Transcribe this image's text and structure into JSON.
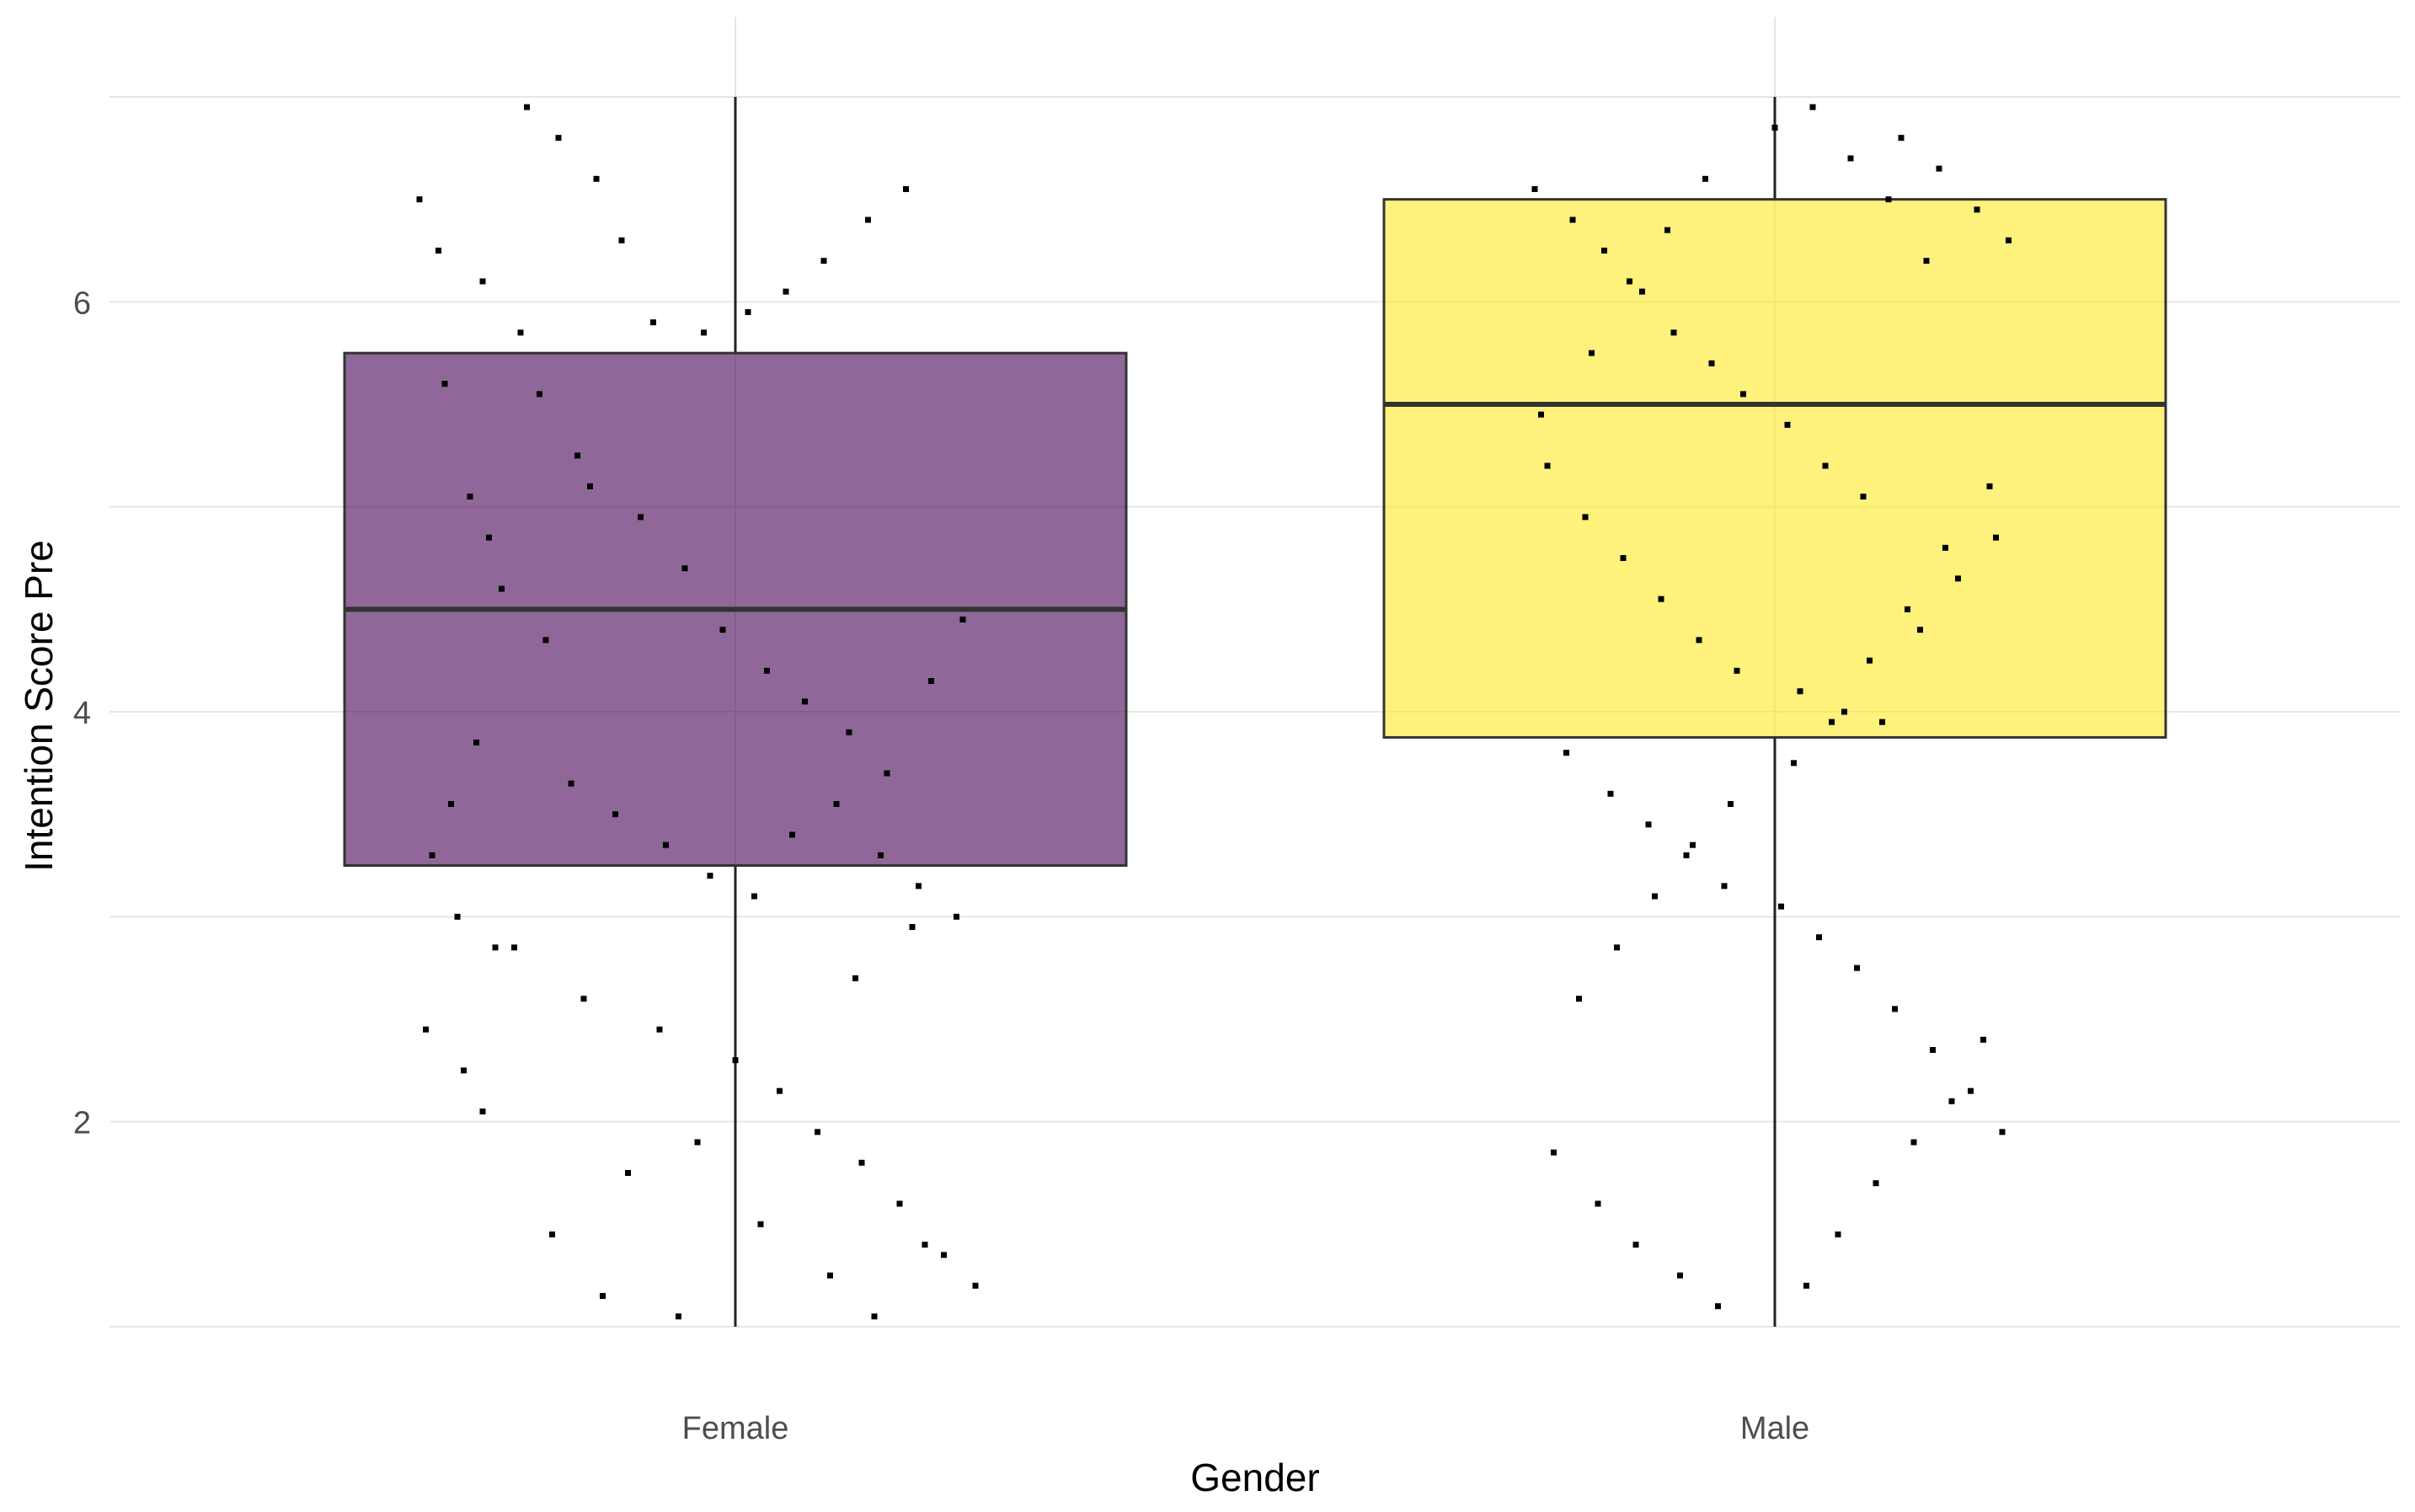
{
  "chart_data": {
    "type": "boxplot",
    "xlabel": "Gender",
    "ylabel": "Intention Score Pre",
    "categories": [
      "Female",
      "Male"
    ],
    "ylim": [
      1,
      7
    ],
    "y_ticks": [
      2,
      4,
      6
    ],
    "grid": true,
    "legend": "none",
    "boxes": [
      {
        "category": "Female",
        "fill": "#440154",
        "fill_opacity": 0.6,
        "min": 1.0,
        "q1": 3.25,
        "median": 4.5,
        "q3": 5.75,
        "max": 7.0,
        "jitter_points": [
          [
            -0.5,
            6.5
          ],
          [
            -0.47,
            6.25
          ],
          [
            -0.4,
            6.1
          ],
          [
            -0.34,
            5.85
          ],
          [
            -0.31,
            5.55
          ],
          [
            -0.25,
            5.25
          ],
          [
            -0.46,
            5.6
          ],
          [
            -0.42,
            5.05
          ],
          [
            -0.39,
            4.85
          ],
          [
            -0.37,
            4.6
          ],
          [
            -0.3,
            4.35
          ],
          [
            -0.41,
            3.85
          ],
          [
            -0.45,
            3.55
          ],
          [
            -0.48,
            3.3
          ],
          [
            -0.44,
            3.0
          ],
          [
            -0.38,
            2.85
          ],
          [
            -0.49,
            2.45
          ],
          [
            -0.43,
            2.25
          ],
          [
            -0.4,
            2.05
          ],
          [
            -0.33,
            6.95
          ],
          [
            -0.28,
            6.8
          ],
          [
            -0.22,
            6.6
          ],
          [
            -0.18,
            6.3
          ],
          [
            -0.13,
            5.9
          ],
          [
            -0.05,
            5.85
          ],
          [
            0.02,
            5.95
          ],
          [
            0.08,
            6.05
          ],
          [
            0.14,
            6.2
          ],
          [
            0.21,
            6.4
          ],
          [
            0.27,
            6.55
          ],
          [
            -0.23,
            5.1
          ],
          [
            -0.15,
            4.95
          ],
          [
            -0.08,
            4.7
          ],
          [
            -0.02,
            4.4
          ],
          [
            0.05,
            4.2
          ],
          [
            0.11,
            4.05
          ],
          [
            0.18,
            3.9
          ],
          [
            0.24,
            3.7
          ],
          [
            0.31,
            4.15
          ],
          [
            0.36,
            4.45
          ],
          [
            -0.26,
            3.65
          ],
          [
            -0.19,
            3.5
          ],
          [
            -0.11,
            3.35
          ],
          [
            -0.04,
            3.2
          ],
          [
            0.03,
            3.1
          ],
          [
            0.09,
            3.4
          ],
          [
            0.16,
            3.55
          ],
          [
            0.23,
            3.3
          ],
          [
            0.29,
            3.15
          ],
          [
            0.35,
            3.0
          ],
          [
            -0.35,
            2.85
          ],
          [
            -0.24,
            2.6
          ],
          [
            -0.12,
            2.45
          ],
          [
            0.0,
            2.3
          ],
          [
            0.07,
            2.15
          ],
          [
            0.13,
            1.95
          ],
          [
            0.2,
            1.8
          ],
          [
            0.26,
            1.6
          ],
          [
            0.33,
            1.35
          ],
          [
            0.38,
            1.2
          ],
          [
            -0.29,
            1.45
          ],
          [
            -0.17,
            1.75
          ],
          [
            -0.06,
            1.9
          ],
          [
            0.04,
            1.5
          ],
          [
            0.15,
            1.25
          ],
          [
            0.22,
            1.05
          ],
          [
            0.3,
            1.4
          ],
          [
            -0.21,
            1.15
          ],
          [
            -0.09,
            1.05
          ],
          [
            0.19,
            2.7
          ],
          [
            0.28,
            2.95
          ]
        ]
      },
      {
        "category": "Male",
        "fill": "#FDE725",
        "fill_opacity": 0.6,
        "min": 1.0,
        "q1": 3.875,
        "median": 5.5,
        "q3": 6.5,
        "max": 7.0,
        "jitter_points": [
          [
            -0.38,
            6.55
          ],
          [
            -0.32,
            6.4
          ],
          [
            -0.27,
            6.25
          ],
          [
            -0.21,
            6.05
          ],
          [
            -0.16,
            5.85
          ],
          [
            -0.1,
            5.7
          ],
          [
            -0.05,
            5.55
          ],
          [
            0.02,
            5.4
          ],
          [
            0.08,
            5.2
          ],
          [
            0.14,
            5.05
          ],
          [
            0.2,
            6.8
          ],
          [
            0.26,
            6.65
          ],
          [
            0.32,
            6.45
          ],
          [
            0.37,
            6.3
          ],
          [
            -0.36,
            5.2
          ],
          [
            -0.3,
            4.95
          ],
          [
            -0.24,
            4.75
          ],
          [
            -0.18,
            4.55
          ],
          [
            -0.12,
            4.35
          ],
          [
            -0.06,
            4.2
          ],
          [
            0.04,
            4.1
          ],
          [
            0.11,
            4.0
          ],
          [
            0.17,
            3.95
          ],
          [
            0.23,
            4.4
          ],
          [
            0.29,
            4.65
          ],
          [
            0.35,
            4.85
          ],
          [
            -0.33,
            3.8
          ],
          [
            -0.26,
            3.6
          ],
          [
            -0.2,
            3.45
          ],
          [
            -0.14,
            3.3
          ],
          [
            -0.08,
            3.15
          ],
          [
            0.01,
            3.05
          ],
          [
            0.07,
            2.9
          ],
          [
            0.13,
            2.75
          ],
          [
            0.19,
            2.55
          ],
          [
            0.25,
            2.35
          ],
          [
            0.31,
            2.15
          ],
          [
            0.36,
            1.95
          ],
          [
            -0.35,
            1.85
          ],
          [
            -0.28,
            1.6
          ],
          [
            -0.22,
            1.4
          ],
          [
            -0.15,
            1.25
          ],
          [
            -0.09,
            1.1
          ],
          [
            0.05,
            1.2
          ],
          [
            0.1,
            1.45
          ],
          [
            0.16,
            1.7
          ],
          [
            0.22,
            1.9
          ],
          [
            0.28,
            2.1
          ],
          [
            0.33,
            2.4
          ],
          [
            -0.31,
            2.6
          ],
          [
            -0.25,
            2.85
          ],
          [
            -0.19,
            3.1
          ],
          [
            -0.13,
            3.35
          ],
          [
            -0.07,
            3.55
          ],
          [
            0.03,
            3.75
          ],
          [
            0.09,
            3.95
          ],
          [
            0.15,
            4.25
          ],
          [
            0.21,
            4.5
          ],
          [
            0.27,
            4.8
          ],
          [
            0.34,
            5.1
          ],
          [
            -0.37,
            5.45
          ],
          [
            -0.29,
            5.75
          ],
          [
            -0.23,
            6.1
          ],
          [
            -0.17,
            6.35
          ],
          [
            -0.11,
            6.6
          ],
          [
            0.0,
            6.85
          ],
          [
            0.06,
            6.95
          ],
          [
            0.12,
            6.7
          ],
          [
            0.18,
            6.5
          ],
          [
            0.24,
            6.2
          ]
        ]
      }
    ]
  }
}
